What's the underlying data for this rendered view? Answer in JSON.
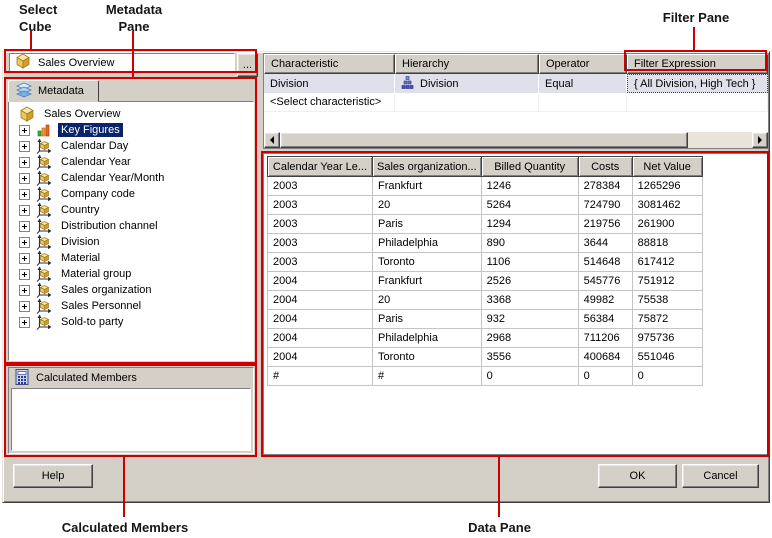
{
  "annotations": {
    "select_cube": {
      "line1": "Select",
      "line2": "Cube"
    },
    "metadata_pane": {
      "line1": "Metadata",
      "line2": "Pane"
    },
    "filter_pane": "Filter Pane",
    "calculated_members": "Calculated Members",
    "data_pane": "Data Pane"
  },
  "cube_selector": {
    "value": "Sales Overview",
    "icon": "cube",
    "browse_label": "..."
  },
  "metadata_pane": {
    "tab": {
      "label": "Metadata",
      "icon": "metadata-stack"
    },
    "tree": [
      {
        "label": "Sales Overview",
        "icon": "cube",
        "expander": false,
        "root": true,
        "selected": false
      },
      {
        "label": "Key Figures",
        "icon": "key-figures",
        "expander": true,
        "selected": true
      },
      {
        "label": "Calendar Day",
        "icon": "dimension",
        "expander": true,
        "selected": false
      },
      {
        "label": "Calendar Year",
        "icon": "dimension",
        "expander": true,
        "selected": false
      },
      {
        "label": "Calendar Year/Month",
        "icon": "dimension",
        "expander": true,
        "selected": false
      },
      {
        "label": "Company code",
        "icon": "dimension",
        "expander": true,
        "selected": false
      },
      {
        "label": "Country",
        "icon": "dimension",
        "expander": true,
        "selected": false
      },
      {
        "label": "Distribution channel",
        "icon": "dimension",
        "expander": true,
        "selected": false
      },
      {
        "label": "Division",
        "icon": "dimension",
        "expander": true,
        "selected": false
      },
      {
        "label": "Material",
        "icon": "dimension",
        "expander": true,
        "selected": false
      },
      {
        "label": "Material group",
        "icon": "dimension",
        "expander": true,
        "selected": false
      },
      {
        "label": "Sales organization",
        "icon": "dimension",
        "expander": true,
        "selected": false
      },
      {
        "label": "Sales Personnel",
        "icon": "dimension",
        "expander": true,
        "selected": false
      },
      {
        "label": "Sold-to party",
        "icon": "dimension",
        "expander": true,
        "selected": false
      }
    ]
  },
  "filter_pane": {
    "columns": [
      "Characteristic",
      "Hierarchy",
      "Operator",
      "Filter Expression"
    ],
    "rows": [
      {
        "characteristic": "Division",
        "hierarchy": "Division",
        "hierarchy_icon": "hierarchy",
        "operator": "Equal",
        "filter_expression": "{ All Division, High Tech }",
        "highlighted": true
      },
      {
        "characteristic": "<Select characteristic>",
        "hierarchy": "",
        "hierarchy_icon": "",
        "operator": "",
        "filter_expression": "",
        "highlighted": false
      }
    ]
  },
  "data_pane": {
    "columns": [
      "Calendar Year Le...",
      "Sales organization...",
      "Billed Quantity",
      "Costs",
      "Net Value"
    ],
    "rows": [
      [
        "2003",
        "Frankfurt",
        "1246",
        "278384",
        "1265296"
      ],
      [
        "2003",
        "20",
        "5264",
        "724790",
        "3081462"
      ],
      [
        "2003",
        "Paris",
        "1294",
        "219756",
        "261900"
      ],
      [
        "2003",
        "Philadelphia",
        "890",
        "3644",
        "88818"
      ],
      [
        "2003",
        "Toronto",
        "1106",
        "514648",
        "617412"
      ],
      [
        "2004",
        "Frankfurt",
        "2526",
        "545776",
        "751912"
      ],
      [
        "2004",
        "20",
        "3368",
        "49982",
        "75538"
      ],
      [
        "2004",
        "Paris",
        "932",
        "56384",
        "75872"
      ],
      [
        "2004",
        "Philadelphia",
        "2968",
        "711206",
        "975736"
      ],
      [
        "2004",
        "Toronto",
        "3556",
        "400684",
        "551046"
      ],
      [
        "#",
        "#",
        "0",
        "0",
        "0"
      ]
    ]
  },
  "calculated_members_pane": {
    "header": "Calculated Members",
    "icon": "calculator"
  },
  "buttons": {
    "help": "Help",
    "ok": "OK",
    "cancel": "Cancel"
  },
  "colors": {
    "annotation_red": "#cc0000",
    "selection_blue": "#0a246a",
    "dialog_bg": "#d4d0c8",
    "filter_row_bg": "#e0e0ea"
  }
}
